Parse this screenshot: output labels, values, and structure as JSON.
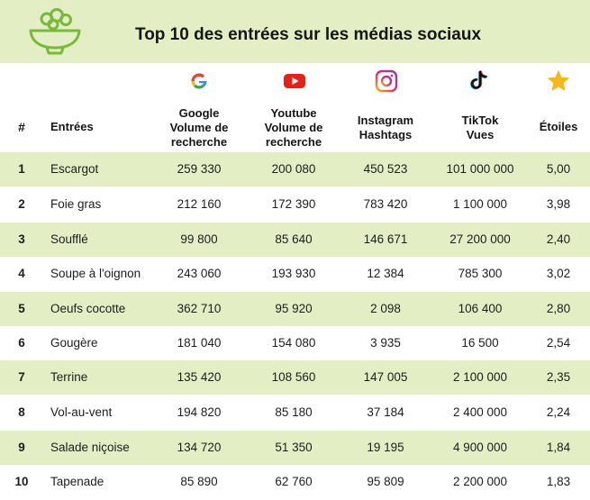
{
  "title": "Top 10 des entrées sur les médias sociaux",
  "colors": {
    "band": "#e3eec5",
    "logo_green": "#79b93a",
    "star": "#f6b81c",
    "youtube": "#e62117"
  },
  "icons": {
    "logo": "salad-bowl-icon",
    "google": "google-icon",
    "youtube": "youtube-icon",
    "instagram": "instagram-icon",
    "tiktok": "tiktok-icon",
    "stars": "star-icon"
  },
  "headers": {
    "rank": "#",
    "dish": "Entrées",
    "google": [
      "Google",
      "Volume de",
      "recherche"
    ],
    "youtube": [
      "Youtube",
      "Volume de",
      "recherche"
    ],
    "instagram": [
      "Instagram",
      "Hashtags"
    ],
    "tiktok": [
      "TikTok",
      "Vues"
    ],
    "stars": "Étoiles"
  },
  "rows": [
    {
      "rank": "1",
      "dish": "Escargot",
      "google": "259 330",
      "youtube": "200 080",
      "instagram": "450 523",
      "tiktok": "101 000 000",
      "stars": "5,00"
    },
    {
      "rank": "2",
      "dish": "Foie gras",
      "google": "212 160",
      "youtube": "172 390",
      "instagram": "783 420",
      "tiktok": "1 100 000",
      "stars": "3,98"
    },
    {
      "rank": "3",
      "dish": "Soufflé",
      "google": "99 800",
      "youtube": "85 640",
      "instagram": "146 671",
      "tiktok": "27 200 000",
      "stars": "2,40"
    },
    {
      "rank": "4",
      "dish": "Soupe à l'oignon",
      "google": "243 060",
      "youtube": "193 930",
      "instagram": "12 384",
      "tiktok": "785 300",
      "stars": "3,02"
    },
    {
      "rank": "5",
      "dish": "Oeufs cocotte",
      "google": "362 710",
      "youtube": "95 920",
      "instagram": "2 098",
      "tiktok": "106 400",
      "stars": "2,80"
    },
    {
      "rank": "6",
      "dish": "Gougère",
      "google": "181 040",
      "youtube": "154 080",
      "instagram": "3 935",
      "tiktok": "16 500",
      "stars": "2,54"
    },
    {
      "rank": "7",
      "dish": "Terrine",
      "google": "135 420",
      "youtube": "108 560",
      "instagram": "147 005",
      "tiktok": "2 100 000",
      "stars": "2,35"
    },
    {
      "rank": "8",
      "dish": "Vol-au-vent",
      "google": "194 820",
      "youtube": "85 180",
      "instagram": "37 184",
      "tiktok": "2 400 000",
      "stars": "2,24"
    },
    {
      "rank": "9",
      "dish": "Salade niçoise",
      "google": "134 720",
      "youtube": "51 350",
      "instagram": "19 195",
      "tiktok": "4 900 000",
      "stars": "1,84"
    },
    {
      "rank": "10",
      "dish": "Tapenade",
      "google": "85 890",
      "youtube": "62 760",
      "instagram": "95 809",
      "tiktok": "2 200 000",
      "stars": "1,83"
    }
  ]
}
